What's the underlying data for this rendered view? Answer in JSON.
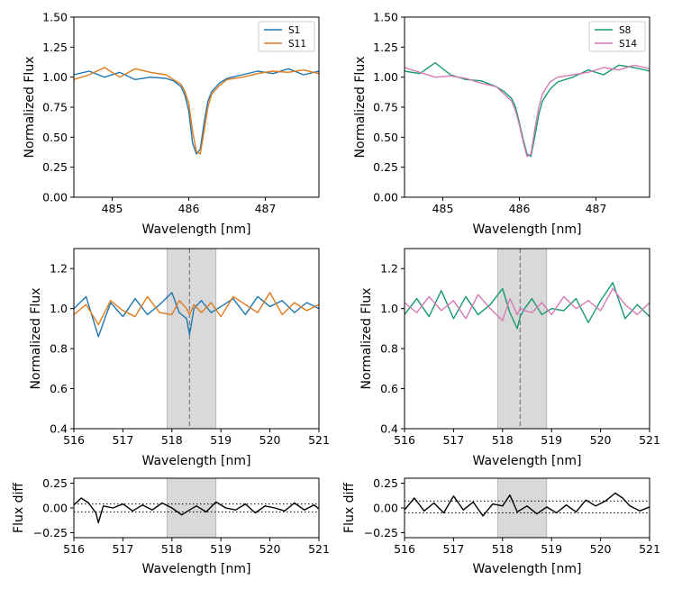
{
  "chart_data": [
    {
      "type": "line",
      "id": "p1",
      "xlabel": "Wavelength [nm]",
      "ylabel": "Normalized Flux",
      "xlim": [
        484.5,
        487.7
      ],
      "ylim": [
        0.0,
        1.5
      ],
      "xticks": [
        485,
        486,
        487
      ],
      "yticks": [
        0.0,
        0.25,
        0.5,
        0.75,
        1.0,
        1.25,
        1.5
      ],
      "ytick_labels": [
        "0.00",
        "0.25",
        "0.50",
        "0.75",
        "1.00",
        "1.25",
        "1.50"
      ],
      "legend": "top-right",
      "series": [
        {
          "name": "S1",
          "color": "#1f77b4",
          "x": [
            484.5,
            484.7,
            484.9,
            485.1,
            485.3,
            485.5,
            485.7,
            485.8,
            485.9,
            485.95,
            486.0,
            486.05,
            486.1,
            486.15,
            486.2,
            486.25,
            486.3,
            486.4,
            486.5,
            486.7,
            486.9,
            487.1,
            487.3,
            487.5,
            487.7
          ],
          "y": [
            1.02,
            1.05,
            1.0,
            1.04,
            0.98,
            1.0,
            0.99,
            0.97,
            0.92,
            0.85,
            0.72,
            0.45,
            0.36,
            0.4,
            0.62,
            0.8,
            0.88,
            0.95,
            0.99,
            1.02,
            1.05,
            1.03,
            1.07,
            1.02,
            1.05
          ]
        },
        {
          "name": "S11",
          "color": "#e07b1a",
          "x": [
            484.5,
            484.7,
            484.9,
            485.1,
            485.3,
            485.5,
            485.7,
            485.8,
            485.9,
            485.95,
            486.0,
            486.05,
            486.1,
            486.15,
            486.2,
            486.25,
            486.3,
            486.4,
            486.5,
            486.7,
            486.9,
            487.1,
            487.3,
            487.5,
            487.7
          ],
          "y": [
            0.98,
            1.02,
            1.08,
            1.0,
            1.07,
            1.04,
            1.02,
            0.98,
            0.94,
            0.88,
            0.78,
            0.55,
            0.38,
            0.36,
            0.55,
            0.75,
            0.86,
            0.93,
            0.98,
            1.0,
            1.03,
            1.05,
            1.04,
            1.06,
            1.03
          ]
        }
      ]
    },
    {
      "type": "line",
      "id": "p2",
      "xlabel": "Wavelength [nm]",
      "ylabel": "Normalized Flux",
      "xlim": [
        484.5,
        487.7
      ],
      "ylim": [
        0.0,
        1.5
      ],
      "xticks": [
        485,
        486,
        487
      ],
      "yticks": [
        0.0,
        0.25,
        0.5,
        0.75,
        1.0,
        1.25,
        1.5
      ],
      "ytick_labels": [
        "0.00",
        "0.25",
        "0.50",
        "0.75",
        "1.00",
        "1.25",
        "1.50"
      ],
      "legend": "top-right",
      "series": [
        {
          "name": "S8",
          "color": "#159a73",
          "x": [
            484.5,
            484.7,
            484.9,
            485.1,
            485.3,
            485.5,
            485.7,
            485.8,
            485.9,
            485.95,
            486.0,
            486.05,
            486.1,
            486.15,
            486.2,
            486.25,
            486.3,
            486.4,
            486.5,
            486.7,
            486.9,
            487.1,
            487.3,
            487.5,
            487.7
          ],
          "y": [
            1.05,
            1.03,
            1.12,
            1.02,
            0.98,
            0.97,
            0.92,
            0.88,
            0.82,
            0.75,
            0.62,
            0.48,
            0.36,
            0.34,
            0.5,
            0.68,
            0.8,
            0.9,
            0.96,
            1.0,
            1.06,
            1.02,
            1.1,
            1.08,
            1.05
          ]
        },
        {
          "name": "S14",
          "color": "#d67ab8",
          "x": [
            484.5,
            484.7,
            484.9,
            485.1,
            485.3,
            485.5,
            485.7,
            485.8,
            485.9,
            485.95,
            486.0,
            486.05,
            486.1,
            486.15,
            486.2,
            486.25,
            486.3,
            486.4,
            486.5,
            486.7,
            486.9,
            487.1,
            487.3,
            487.5,
            487.7
          ],
          "y": [
            1.08,
            1.04,
            1.0,
            1.01,
            0.99,
            0.95,
            0.92,
            0.86,
            0.8,
            0.72,
            0.6,
            0.46,
            0.34,
            0.36,
            0.56,
            0.74,
            0.86,
            0.96,
            1.0,
            1.02,
            1.04,
            1.08,
            1.06,
            1.1,
            1.07
          ]
        }
      ]
    },
    {
      "type": "line",
      "id": "p3",
      "xlabel": "Wavelength [nm]",
      "ylabel": "Normalized Flux",
      "xlim": [
        516,
        521
      ],
      "ylim": [
        0.4,
        1.3
      ],
      "xticks": [
        516,
        517,
        518,
        519,
        520,
        521
      ],
      "yticks": [
        0.4,
        0.6,
        0.8,
        1.0,
        1.2
      ],
      "ytick_labels": [
        "0.4",
        "0.6",
        "0.8",
        "1.0",
        "1.2"
      ],
      "shaded_region": [
        517.9,
        518.9
      ],
      "vline": 518.36,
      "series": [
        {
          "name": "S1",
          "color": "#1f77b4",
          "x": [
            516.0,
            516.25,
            516.5,
            516.75,
            517.0,
            517.25,
            517.5,
            517.75,
            518.0,
            518.15,
            518.3,
            518.36,
            518.45,
            518.6,
            518.8,
            519.0,
            519.25,
            519.5,
            519.75,
            520.0,
            520.25,
            520.5,
            520.75,
            521.0
          ],
          "y": [
            1.0,
            1.06,
            0.86,
            1.03,
            0.96,
            1.05,
            0.97,
            1.02,
            1.08,
            0.98,
            0.95,
            0.87,
            1.0,
            1.04,
            0.98,
            1.01,
            1.05,
            0.97,
            1.06,
            1.01,
            1.04,
            0.98,
            1.03,
            1.0
          ]
        },
        {
          "name": "S11",
          "color": "#e07b1a",
          "x": [
            516.0,
            516.25,
            516.5,
            516.75,
            517.0,
            517.25,
            517.5,
            517.75,
            518.0,
            518.15,
            518.3,
            518.36,
            518.45,
            518.6,
            518.8,
            519.0,
            519.25,
            519.5,
            519.75,
            520.0,
            520.25,
            520.5,
            520.75,
            521.0
          ],
          "y": [
            0.97,
            1.02,
            0.92,
            1.04,
            0.99,
            0.96,
            1.06,
            0.98,
            0.97,
            1.04,
            1.0,
            0.97,
            1.02,
            0.98,
            1.03,
            0.96,
            1.06,
            1.02,
            0.98,
            1.08,
            0.97,
            1.03,
            0.99,
            1.02
          ]
        }
      ]
    },
    {
      "type": "line",
      "id": "p4",
      "xlabel": "Wavelength [nm]",
      "ylabel": "Normalized Flux",
      "xlim": [
        516,
        521
      ],
      "ylim": [
        0.4,
        1.3
      ],
      "xticks": [
        516,
        517,
        518,
        519,
        520,
        521
      ],
      "yticks": [
        0.4,
        0.6,
        0.8,
        1.0,
        1.2
      ],
      "ytick_labels": [
        "0.4",
        "0.6",
        "0.8",
        "1.0",
        "1.2"
      ],
      "shaded_region": [
        517.9,
        518.9
      ],
      "vline": 518.36,
      "series": [
        {
          "name": "S8",
          "color": "#159a73",
          "x": [
            516.0,
            516.25,
            516.5,
            516.75,
            517.0,
            517.25,
            517.5,
            517.75,
            518.0,
            518.15,
            518.3,
            518.36,
            518.45,
            518.6,
            518.8,
            519.0,
            519.25,
            519.5,
            519.75,
            520.0,
            520.25,
            520.5,
            520.75,
            521.0
          ],
          "y": [
            0.97,
            1.05,
            0.96,
            1.09,
            0.95,
            1.06,
            0.97,
            1.02,
            1.1,
            0.98,
            0.9,
            0.96,
            1.0,
            1.05,
            0.97,
            1.0,
            0.99,
            1.05,
            0.93,
            1.04,
            1.13,
            0.95,
            1.02,
            0.96
          ]
        },
        {
          "name": "S14",
          "color": "#d67ab8",
          "x": [
            516.0,
            516.25,
            516.5,
            516.75,
            517.0,
            517.25,
            517.5,
            517.75,
            518.0,
            518.15,
            518.3,
            518.36,
            518.45,
            518.6,
            518.8,
            519.0,
            519.25,
            519.5,
            519.75,
            520.0,
            520.25,
            520.5,
            520.75,
            521.0
          ],
          "y": [
            1.03,
            0.98,
            1.06,
            0.99,
            1.04,
            0.95,
            1.07,
            1.0,
            0.94,
            1.05,
            0.97,
            1.0,
            0.99,
            0.98,
            1.03,
            0.97,
            1.06,
            1.0,
            1.04,
            0.99,
            1.1,
            1.02,
            0.97,
            1.03
          ]
        }
      ]
    },
    {
      "type": "line",
      "id": "p5",
      "xlabel": "Wavelength [nm]",
      "ylabel": "Flux diff",
      "xlim": [
        516,
        521
      ],
      "ylim": [
        -0.3,
        0.3
      ],
      "xticks": [
        516,
        517,
        518,
        519,
        520,
        521
      ],
      "yticks": [
        -0.25,
        0.0,
        0.25
      ],
      "ytick_labels": [
        "−0.25",
        "0.00",
        "0.25"
      ],
      "shaded_region": [
        517.9,
        518.9
      ],
      "hlines_dotted": [
        0.04,
        -0.04
      ],
      "series": [
        {
          "name": "diff",
          "color": "#000000",
          "x": [
            516.0,
            516.15,
            516.3,
            516.45,
            516.5,
            516.6,
            516.8,
            517.0,
            517.2,
            517.4,
            517.6,
            517.8,
            518.0,
            518.2,
            518.36,
            518.5,
            518.7,
            518.9,
            519.1,
            519.3,
            519.5,
            519.7,
            519.9,
            520.1,
            520.3,
            520.5,
            520.7,
            520.9,
            521.0
          ],
          "y": [
            0.03,
            0.1,
            0.05,
            -0.05,
            -0.15,
            0.02,
            0.0,
            0.04,
            -0.03,
            0.03,
            -0.02,
            0.05,
            0.0,
            -0.07,
            -0.02,
            0.02,
            -0.04,
            0.06,
            0.0,
            -0.02,
            0.04,
            -0.05,
            0.02,
            0.0,
            -0.03,
            0.05,
            -0.02,
            0.03,
            -0.01
          ]
        }
      ]
    },
    {
      "type": "line",
      "id": "p6",
      "xlabel": "Wavelength [nm]",
      "ylabel": "Flux diff",
      "xlim": [
        516,
        521
      ],
      "ylim": [
        -0.3,
        0.3
      ],
      "xticks": [
        516,
        517,
        518,
        519,
        520,
        521
      ],
      "yticks": [
        -0.25,
        0.0,
        0.25
      ],
      "ytick_labels": [
        "−0.25",
        "0.00",
        "0.25"
      ],
      "shaded_region": [
        517.9,
        518.9
      ],
      "hlines_dotted": [
        0.07,
        -0.05
      ],
      "series": [
        {
          "name": "diff",
          "color": "#000000",
          "x": [
            516.0,
            516.2,
            516.4,
            516.6,
            516.8,
            517.0,
            517.2,
            517.4,
            517.6,
            517.8,
            518.0,
            518.15,
            518.3,
            518.5,
            518.7,
            518.9,
            519.1,
            519.3,
            519.5,
            519.7,
            519.9,
            520.1,
            520.3,
            520.45,
            520.6,
            520.8,
            521.0
          ],
          "y": [
            -0.02,
            0.1,
            -0.03,
            0.05,
            -0.05,
            0.12,
            -0.02,
            0.06,
            -0.08,
            0.04,
            0.02,
            0.13,
            -0.04,
            0.02,
            -0.06,
            0.01,
            -0.05,
            0.03,
            -0.04,
            0.08,
            0.02,
            0.07,
            0.15,
            0.1,
            0.02,
            -0.03,
            0.01
          ]
        }
      ]
    }
  ]
}
